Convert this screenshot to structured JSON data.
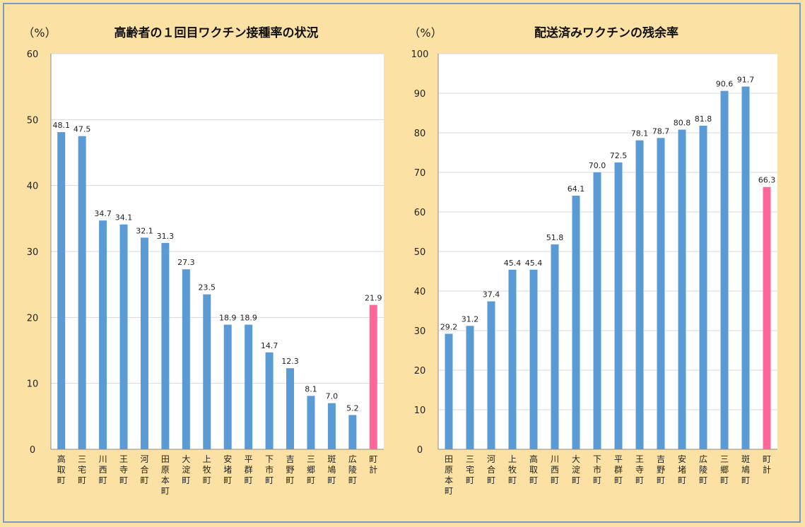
{
  "chart_data": [
    {
      "type": "bar",
      "title": "高齢者の１回目ワクチン接種率の状況",
      "unit": "（%）",
      "ylim": [
        0,
        60
      ],
      "yticks": [
        0,
        10,
        20,
        30,
        40,
        50,
        60
      ],
      "grid": true,
      "categories": [
        "高取町",
        "三宅町",
        "川西町",
        "王寺町",
        "河合町",
        "田原本町",
        "大淀町",
        "上牧町",
        "安堵町",
        "平群町",
        "下市町",
        "吉野町",
        "三郷町",
        "斑鳩町",
        "広陵町",
        "町計"
      ],
      "values": [
        48.1,
        47.5,
        34.7,
        34.1,
        32.1,
        31.3,
        27.3,
        23.5,
        18.9,
        18.9,
        14.7,
        12.3,
        8.1,
        7.0,
        5.2,
        21.9
      ],
      "value_labels": [
        "48.1",
        "47.5",
        "34.7",
        "34.1",
        "32.1",
        "31.3",
        "27.3",
        "23.5",
        "18.9",
        "18.9",
        "14.7",
        "12.3",
        "8.1",
        "7.0",
        "5.2",
        "21.9"
      ],
      "colors": {
        "bar": "#5b9bd5",
        "highlight": "#ff6699"
      },
      "highlight_category": "町計"
    },
    {
      "type": "bar",
      "title": "配送済みワクチンの残余率",
      "unit": "（%）",
      "ylim": [
        0,
        100
      ],
      "yticks": [
        0,
        10,
        20,
        30,
        40,
        50,
        60,
        70,
        80,
        90,
        100
      ],
      "grid": true,
      "categories": [
        "田原本町",
        "三宅町",
        "河合町",
        "上牧町",
        "高取町",
        "川西町",
        "大淀町",
        "下市町",
        "平群町",
        "王寺町",
        "吉野町",
        "安堵町",
        "広陵町",
        "三郷町",
        "斑鳩町",
        "町計"
      ],
      "values": [
        29.2,
        31.2,
        37.4,
        45.4,
        45.4,
        51.8,
        64.1,
        70.0,
        72.5,
        78.1,
        78.7,
        80.8,
        81.8,
        90.6,
        91.7,
        66.3
      ],
      "value_labels": [
        "29.2",
        "31.2",
        "37.4",
        "45.4",
        "45.4",
        "51.8",
        "64.1",
        "70.0",
        "72.5",
        "78.1",
        "78.7",
        "80.8",
        "81.8",
        "90.6",
        "91.7",
        "66.3"
      ],
      "colors": {
        "bar": "#5b9bd5",
        "highlight": "#ff6699"
      },
      "highlight_category": "町計"
    }
  ]
}
